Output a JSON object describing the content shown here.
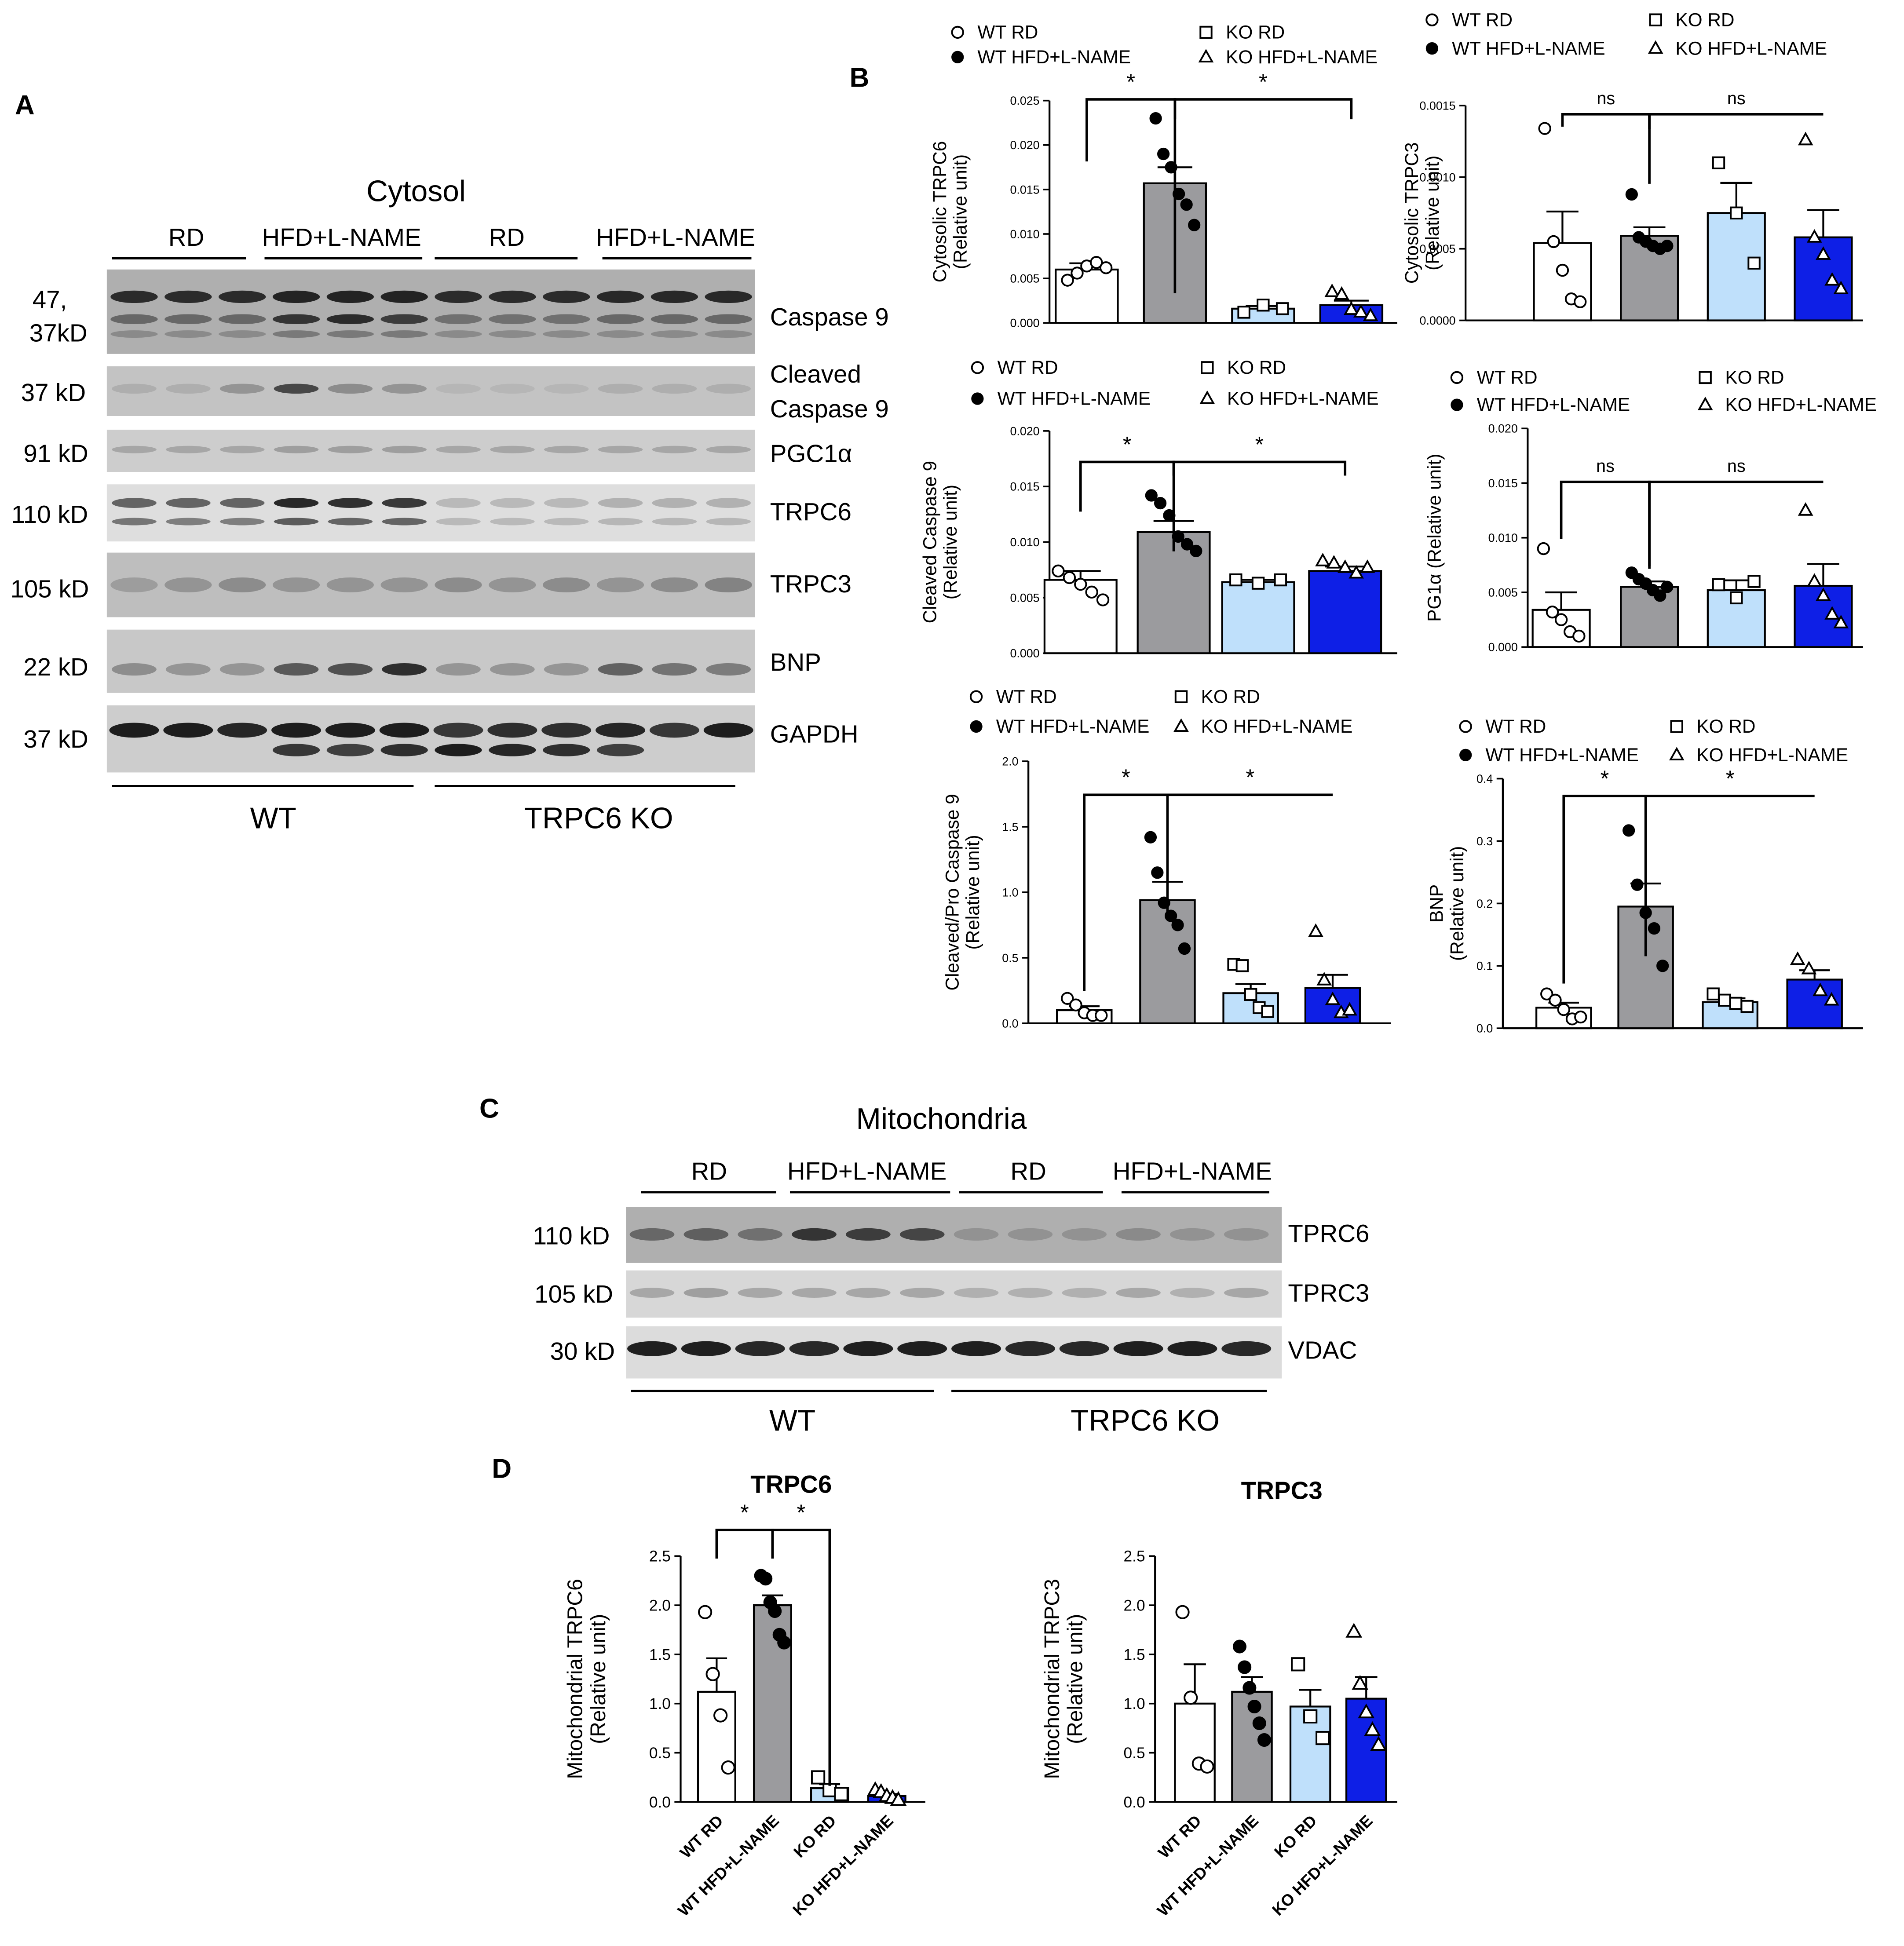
{
  "panels": {
    "A": "A",
    "B": "B",
    "C": "C",
    "D": "D"
  },
  "groups": [
    "WT RD",
    "WT HFD+L-NAME",
    "KO RD",
    "KO HFD+L-NAME"
  ],
  "colors": {
    "WT RD": "#ffffff",
    "WT HFD+L-NAME": "#9b9b9e",
    "KO RD": "#bfe0fb",
    "KO HFD+L-NAME": "#0e1fe6",
    "outline": "#000000"
  },
  "markers": {
    "WT RD": "open-circle",
    "WT HFD+L-NAME": "filled-circle",
    "KO RD": "open-square",
    "KO HFD+L-NAME": "open-triangle"
  },
  "blotA": {
    "title": "Cytosol",
    "conditions": [
      "RD",
      "HFD+L-NAME",
      "RD",
      "HFD+L-NAME"
    ],
    "genotypes": [
      "WT",
      "TRPC6 KO"
    ],
    "rows": [
      {
        "size": "47,\n37kD",
        "label": "Caspase 9"
      },
      {
        "size": "37 kD",
        "label": "Cleaved\nCaspase 9"
      },
      {
        "size": "91 kD",
        "label": "PGC1α"
      },
      {
        "size": "110 kD",
        "label": "TRPC6"
      },
      {
        "size": "105 kD",
        "label": "TRPC3"
      },
      {
        "size": "22 kD",
        "label": "BNP"
      },
      {
        "size": "37 kD",
        "label": "GAPDH"
      }
    ]
  },
  "blotC": {
    "title": "Mitochondria",
    "conditions": [
      "RD",
      "HFD+L-NAME",
      "RD",
      "HFD+L-NAME"
    ],
    "genotypes": [
      "WT",
      "TRPC6 KO"
    ],
    "rows": [
      {
        "size": "110 kD",
        "label": "TPRC6"
      },
      {
        "size": "105 kD",
        "label": "TPRC3"
      },
      {
        "size": "30 kD",
        "label": "VDAC"
      }
    ]
  },
  "chart_data": [
    {
      "type": "bar",
      "ylabel": "Cytosolic TRPC6\n(Relative unit)",
      "ylim": [
        0,
        0.025
      ],
      "yticks": [
        "0.000",
        "0.005",
        "0.010",
        "0.015",
        "0.020",
        "0.025"
      ],
      "legend": "top",
      "means": [
        0.006,
        0.0157,
        0.0016,
        0.002
      ],
      "errors": [
        0.0007,
        0.0018,
        0.0003,
        0.0005
      ],
      "points": [
        [
          0.0048,
          0.0056,
          0.0064,
          0.0068,
          0.0062
        ],
        [
          0.023,
          0.019,
          0.0175,
          0.0145,
          0.0133,
          0.011
        ],
        [
          0.0012,
          0.002,
          0.0016
        ],
        [
          0.0035,
          0.0032,
          0.0015,
          0.0012,
          0.0008
        ]
      ],
      "comparisons": [
        {
          "a": 0,
          "b": 1,
          "label": "*"
        },
        {
          "a": 1,
          "b": 3,
          "label": "*"
        }
      ]
    },
    {
      "type": "bar",
      "ylabel": "Cytosolic TRPC3\n(Relative unit)",
      "ylim": [
        0,
        0.0015
      ],
      "yticks": [
        "0.0000",
        "0.0005",
        "0.0010",
        "0.0015"
      ],
      "legend": "top",
      "means": [
        0.00054,
        0.00059,
        0.00075,
        0.00058
      ],
      "errors": [
        0.00022,
        6e-05,
        0.00021,
        0.00019
      ],
      "points": [
        [
          0.00134,
          0.00055,
          0.00035,
          0.00015,
          0.00013
        ],
        [
          0.00088,
          0.00058,
          0.00055,
          0.00052,
          0.0005,
          0.00052
        ],
        [
          0.0011,
          0.00075,
          0.0004
        ],
        [
          0.00126,
          0.00058,
          0.00046,
          0.00028,
          0.00022
        ]
      ],
      "comparisons": [
        {
          "a": 0,
          "b": 1,
          "label": "ns"
        },
        {
          "a": 1,
          "b": 3,
          "label": "ns"
        }
      ]
    },
    {
      "type": "bar",
      "ylabel": "Cleaved Caspase 9\n(Relative unit)",
      "ylim": [
        0,
        0.02
      ],
      "yticks": [
        "0.000",
        "0.005",
        "0.010",
        "0.015",
        "0.020"
      ],
      "legend": "top",
      "means": [
        0.0066,
        0.0109,
        0.0064,
        0.0074
      ],
      "errors": [
        0.0008,
        0.001,
        0.0002,
        0.0004
      ],
      "points": [
        [
          0.0074,
          0.0068,
          0.0062,
          0.0055,
          0.0048
        ],
        [
          0.0142,
          0.0135,
          0.0124,
          0.0105,
          0.0098,
          0.0092
        ],
        [
          0.0066,
          0.0063,
          0.0066
        ],
        [
          0.0083,
          0.0081,
          0.0077,
          0.0072,
          0.0077
        ]
      ],
      "comparisons": [
        {
          "a": 0,
          "b": 1,
          "label": "*"
        },
        {
          "a": 1,
          "b": 3,
          "label": "*"
        }
      ]
    },
    {
      "type": "bar",
      "ylabel": "PG1α (Relative unit)",
      "ylim": [
        0,
        0.02
      ],
      "yticks": [
        "0.000",
        "0.005",
        "0.010",
        "0.015",
        "0.020"
      ],
      "legend": "top",
      "means": [
        0.0034,
        0.0055,
        0.0052,
        0.0056
      ],
      "errors": [
        0.0016,
        0.0005,
        0.0009,
        0.002
      ],
      "points": [
        [
          0.009,
          0.0032,
          0.0025,
          0.0014,
          0.001
        ],
        [
          0.0068,
          0.0062,
          0.0058,
          0.0052,
          0.0047,
          0.0055
        ],
        [
          0.0057,
          0.0045,
          0.006
        ],
        [
          0.0125,
          0.006,
          0.0047,
          0.003,
          0.0022
        ]
      ],
      "comparisons": [
        {
          "a": 0,
          "b": 1,
          "label": "ns"
        },
        {
          "a": 1,
          "b": 3,
          "label": "ns"
        }
      ]
    },
    {
      "type": "bar",
      "ylabel": "Cleaved/Pro Caspase 9\n(Relative unit)",
      "ylim": [
        0,
        2.0
      ],
      "yticks": [
        "0.0",
        "0.5",
        "1.0",
        "1.5",
        "2.0"
      ],
      "legend": "top",
      "means": [
        0.1,
        0.94,
        0.23,
        0.27
      ],
      "errors": [
        0.03,
        0.14,
        0.07,
        0.1
      ],
      "points": [
        [
          0.19,
          0.14,
          0.08,
          0.06,
          0.06
        ],
        [
          1.42,
          1.15,
          0.92,
          0.82,
          0.75,
          0.57
        ],
        [
          0.45,
          0.44,
          0.22,
          0.12,
          0.09
        ],
        [
          0.7,
          0.33,
          0.18,
          0.08,
          0.1
        ]
      ],
      "comparisons": [
        {
          "a": 0,
          "b": 1,
          "label": "*"
        },
        {
          "a": 1,
          "b": 3,
          "label": "*"
        }
      ]
    },
    {
      "type": "bar",
      "ylabel": "BNP\n(Relative unit)",
      "ylim": [
        0,
        0.4
      ],
      "yticks": [
        "0.0",
        "0.1",
        "0.2",
        "0.3",
        "0.4"
      ],
      "legend": "top",
      "means": [
        0.033,
        0.195,
        0.042,
        0.078
      ],
      "errors": [
        0.008,
        0.037,
        0.006,
        0.015
      ],
      "points": [
        [
          0.055,
          0.045,
          0.03,
          0.015,
          0.018
        ],
        [
          0.317,
          0.23,
          0.185,
          0.16,
          0.1
        ],
        [
          0.055,
          0.045,
          0.04,
          0.035
        ],
        [
          0.11,
          0.095,
          0.06,
          0.045
        ]
      ],
      "comparisons": [
        {
          "a": 0,
          "b": 1,
          "label": "*"
        },
        {
          "a": 1,
          "b": 3,
          "label": "*"
        }
      ]
    },
    {
      "type": "bar",
      "title": "TRPC6",
      "ylabel": "Mitochondrial TRPC6\n(Relative unit)",
      "ylim": [
        0,
        2.5
      ],
      "yticks": [
        "0.0",
        "0.5",
        "1.0",
        "1.5",
        "2.0",
        "2.5"
      ],
      "categories": [
        "WT RD",
        "WT HFD+L-NAME",
        "KO RD",
        "KO HFD+L-NAME"
      ],
      "means": [
        1.12,
        2.0,
        0.14,
        0.06
      ],
      "errors": [
        0.34,
        0.1,
        0.04,
        0.02
      ],
      "points": [
        [
          1.93,
          1.3,
          0.88,
          0.35
        ],
        [
          2.3,
          2.27,
          2.03,
          1.94,
          1.7,
          1.62
        ],
        [
          0.25,
          0.12,
          0.08
        ],
        [
          0.12,
          0.1,
          0.06,
          0.04,
          0.02
        ]
      ],
      "comparisons": [
        {
          "a": 0,
          "b": 1,
          "label": "*"
        },
        {
          "a": 1,
          "b": 2,
          "label": "*"
        }
      ]
    },
    {
      "type": "bar",
      "title": "TRPC3",
      "ylabel": "Mitochondrial TRPC3\n(Relative unit)",
      "ylim": [
        0,
        2.5
      ],
      "yticks": [
        "0.0",
        "0.5",
        "1.0",
        "1.5",
        "2.0",
        "2.5"
      ],
      "categories": [
        "WT RD",
        "WT HFD+L-NAME",
        "KO RD",
        "KO HFD+L-NAME"
      ],
      "means": [
        1.0,
        1.12,
        0.97,
        1.05
      ],
      "errors": [
        0.4,
        0.15,
        0.17,
        0.22
      ],
      "points": [
        [
          1.93,
          1.06,
          0.39,
          0.36
        ],
        [
          1.58,
          1.37,
          1.16,
          0.97,
          0.8,
          0.63
        ],
        [
          1.4,
          0.87,
          0.65
        ],
        [
          1.73,
          1.2,
          0.91,
          0.73,
          0.58
        ]
      ],
      "comparisons": []
    }
  ]
}
